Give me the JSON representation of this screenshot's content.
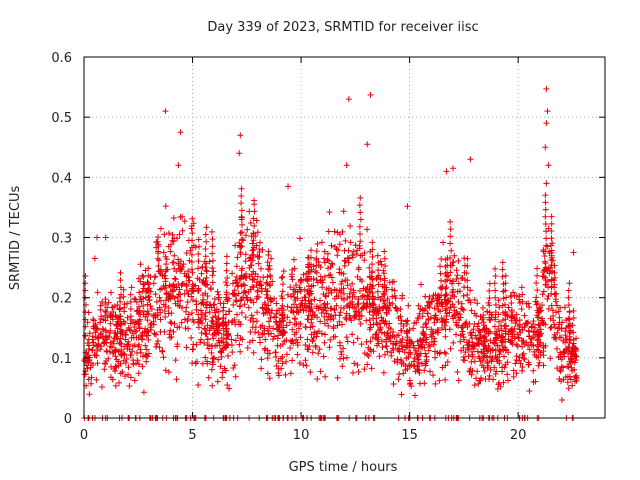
{
  "chart_data": {
    "type": "scatter",
    "title": "Day 339 of 2023, SRMTID for receiver iisc",
    "xlabel": "GPS time / hours",
    "ylabel": "SRMTID / TECUs",
    "xlim": [
      0,
      24
    ],
    "ylim": [
      0,
      0.6
    ],
    "xticks": [
      0,
      5,
      10,
      15,
      20
    ],
    "xtick_labels": [
      "0",
      "5",
      "10",
      "15",
      "20"
    ],
    "yticks": [
      0,
      0.1,
      0.2,
      0.3,
      0.4,
      0.5,
      0.6
    ],
    "ytick_labels": [
      "0",
      "0.1",
      "0.2",
      "0.3",
      "0.4",
      "0.5",
      "0.6"
    ],
    "grid": true,
    "marker": "+",
    "marker_color": "#e8000b",
    "series": [
      {
        "name": "SRMTID",
        "envelope_x": [
          0,
          1,
          2,
          3,
          3.8,
          4.5,
          5.5,
          6.5,
          7.2,
          8,
          9,
          9.5,
          10.5,
          11.5,
          12.2,
          13,
          14,
          15,
          16,
          17,
          18,
          19,
          20,
          21,
          21.3,
          22,
          22.7
        ],
        "envelope_y": [
          0.1,
          0.14,
          0.13,
          0.18,
          0.21,
          0.22,
          0.18,
          0.12,
          0.24,
          0.22,
          0.14,
          0.17,
          0.17,
          0.2,
          0.21,
          0.18,
          0.16,
          0.11,
          0.14,
          0.19,
          0.12,
          0.12,
          0.14,
          0.13,
          0.24,
          0.12,
          0.09
        ],
        "outliers": [
          {
            "x": 3.75,
            "y": 0.51
          },
          {
            "x": 4.45,
            "y": 0.475
          },
          {
            "x": 4.35,
            "y": 0.42
          },
          {
            "x": 7.2,
            "y": 0.47
          },
          {
            "x": 7.15,
            "y": 0.44
          },
          {
            "x": 9.4,
            "y": 0.385
          },
          {
            "x": 12.2,
            "y": 0.53
          },
          {
            "x": 13.2,
            "y": 0.537
          },
          {
            "x": 13.05,
            "y": 0.455
          },
          {
            "x": 12.1,
            "y": 0.42
          },
          {
            "x": 14.9,
            "y": 0.352
          },
          {
            "x": 17.0,
            "y": 0.415
          },
          {
            "x": 16.7,
            "y": 0.41
          },
          {
            "x": 17.8,
            "y": 0.43
          },
          {
            "x": 21.3,
            "y": 0.547
          },
          {
            "x": 21.35,
            "y": 0.51
          },
          {
            "x": 21.3,
            "y": 0.49
          },
          {
            "x": 21.25,
            "y": 0.45
          },
          {
            "x": 21.4,
            "y": 0.42
          },
          {
            "x": 21.3,
            "y": 0.39
          },
          {
            "x": 0.5,
            "y": 0.265
          },
          {
            "x": 0.6,
            "y": 0.3
          },
          {
            "x": 1.0,
            "y": 0.3
          },
          {
            "x": 22.55,
            "y": 0.275
          }
        ]
      }
    ]
  }
}
